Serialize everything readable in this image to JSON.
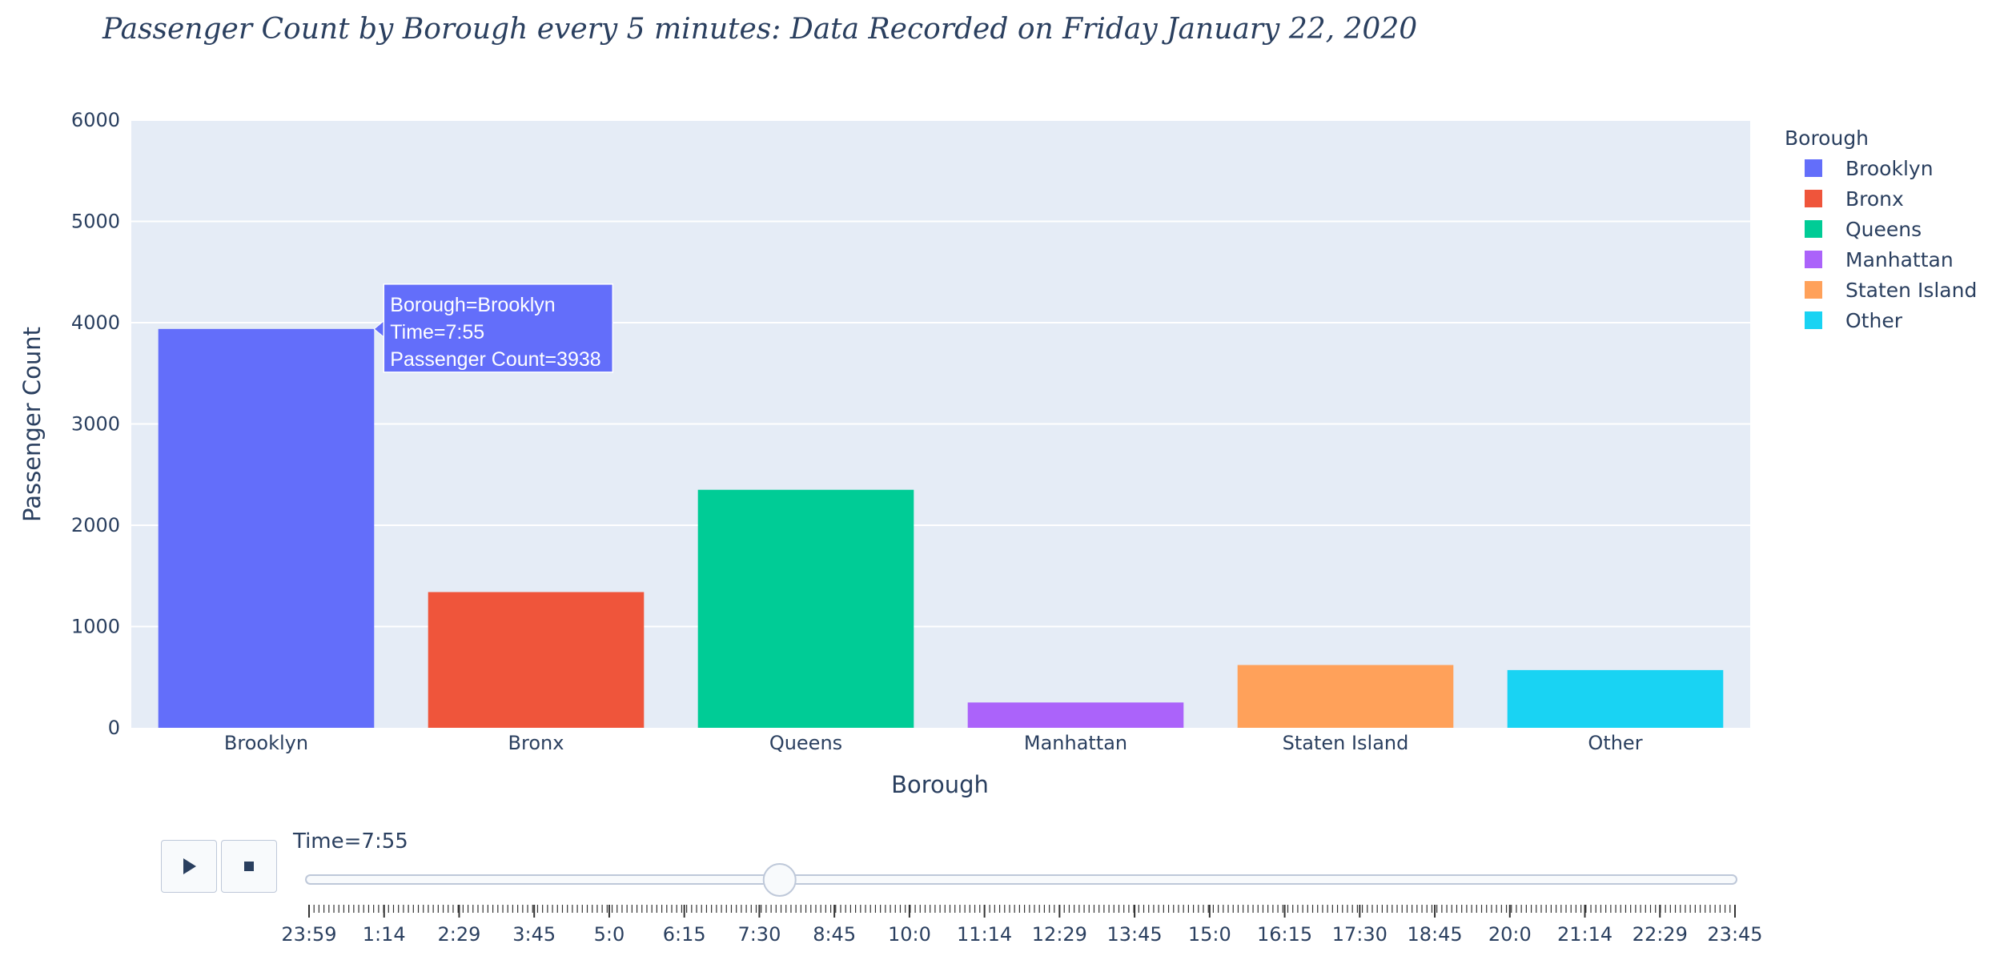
{
  "chart_data": {
    "type": "bar",
    "title": "Passenger Count by Borough every 5 minutes: Data Recorded on Friday January 22, 2020",
    "xlabel": "Borough",
    "ylabel": "Passenger Count",
    "ylim": [
      0,
      6000
    ],
    "yticks": [
      0,
      1000,
      2000,
      3000,
      4000,
      5000,
      6000
    ],
    "categories": [
      "Brooklyn",
      "Bronx",
      "Queens",
      "Manhattan",
      "Staten Island",
      "Other"
    ],
    "values": [
      3938,
      1340,
      2350,
      250,
      620,
      570
    ],
    "colors": [
      "#636efa",
      "#ef553b",
      "#00cc96",
      "#ab63fa",
      "#ffa15a",
      "#19d3f3"
    ],
    "legend": {
      "title": "Borough",
      "placement": "right",
      "items": [
        "Brooklyn",
        "Bronx",
        "Queens",
        "Manhattan",
        "Staten Island",
        "Other"
      ]
    },
    "grid": true,
    "plot_background": "#e5ecf6"
  },
  "hover": {
    "line1": "Borough=Brooklyn",
    "line2": "Time=7:55",
    "line3": "Passenger Count=3938"
  },
  "slider": {
    "current_label": "Time=7:55",
    "current_fraction": 0.33,
    "tick_labels": [
      "23:59",
      "1:14",
      "2:29",
      "3:45",
      "5:0",
      "6:15",
      "7:30",
      "8:45",
      "10:0",
      "11:14",
      "12:29",
      "13:45",
      "15:0",
      "16:15",
      "17:30",
      "18:45",
      "20:0",
      "21:14",
      "22:29",
      "23:45"
    ],
    "play_icon": "play-icon",
    "stop_icon": "stop-icon"
  }
}
